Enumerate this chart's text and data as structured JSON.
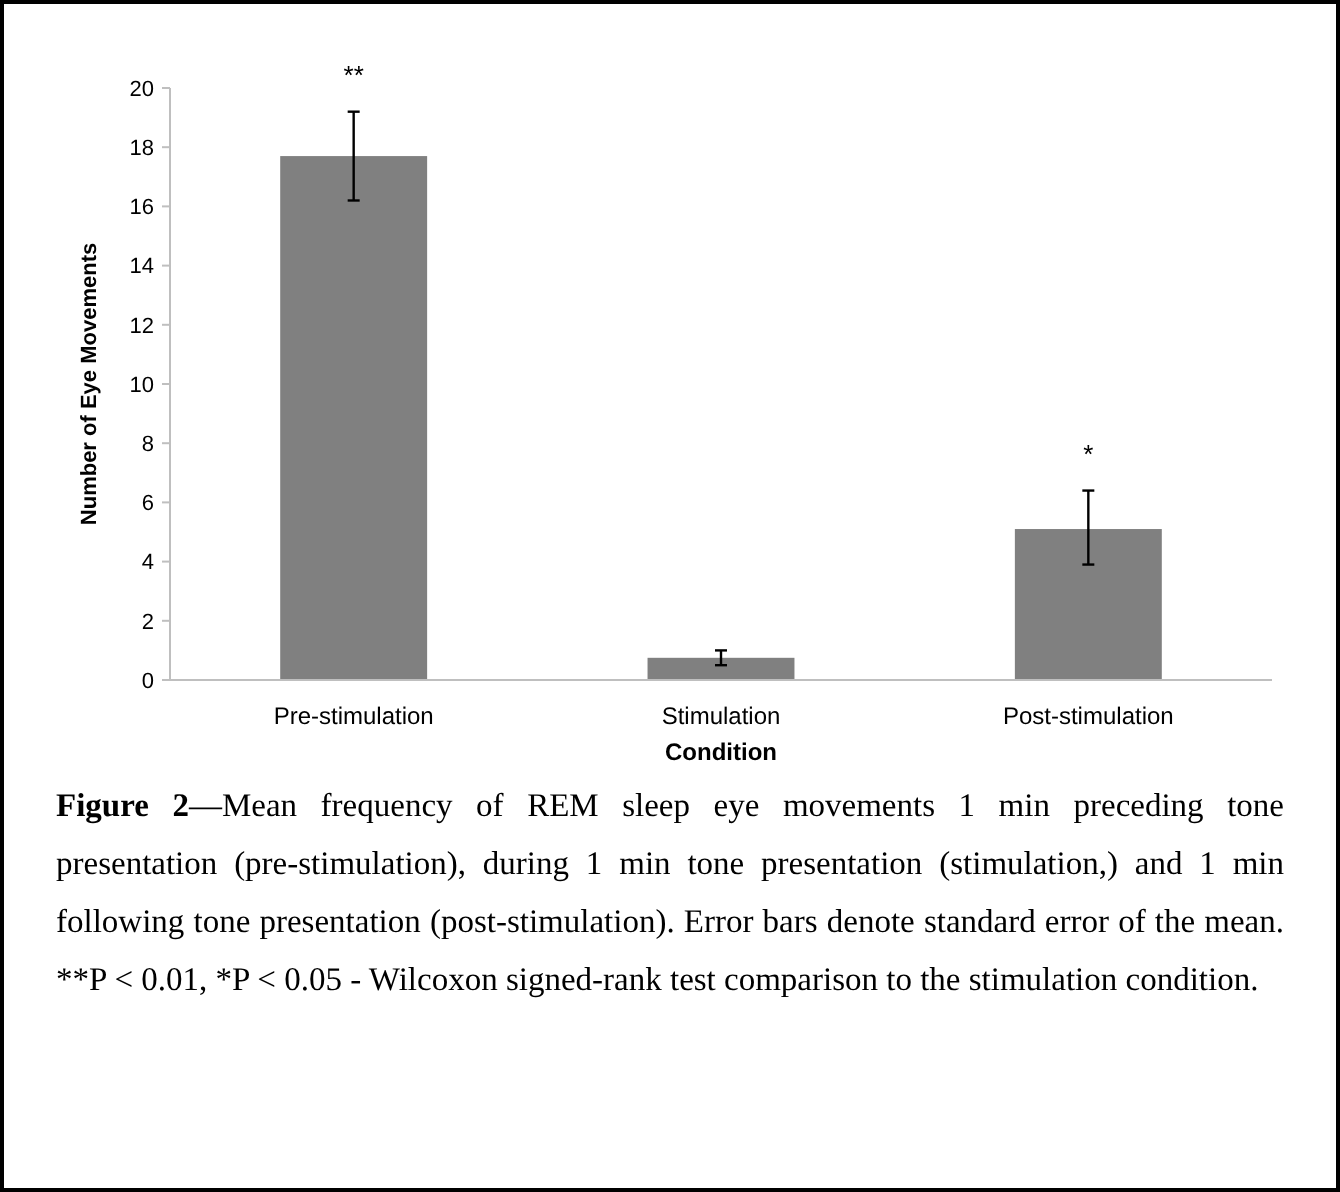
{
  "chart_data": {
    "type": "bar",
    "title": "Figure 2",
    "xlabel": "Condition",
    "ylabel": "Number of Eye Movements",
    "categories": [
      "Pre-stimulation",
      "Stimulation",
      "Post-stimulation"
    ],
    "values": [
      17.7,
      0.75,
      5.1
    ],
    "color": "#808080",
    "errors": [
      [
        16.2,
        19.2
      ],
      [
        0.5,
        1.0
      ],
      [
        3.9,
        6.4
      ]
    ],
    "ylim": [
      0,
      20
    ],
    "yticks": [
      0,
      2,
      4,
      6,
      8,
      10,
      12,
      14,
      16,
      18,
      20
    ],
    "grid": false,
    "annotations": [
      {
        "text": "**",
        "x": "Pre-stimulation",
        "y": 19.2
      },
      {
        "text": "*",
        "x": "Post-stimulation",
        "y": 6.4
      },
      "—Mean frequency of REM sleep eye movements 1 min preceding tone presentation (pre-stimulation), during 1 min tone presentation (stimulation,) and 1 min following tone presentation (post-stimulation). Error bars denote standard error of the mean. **P < 0.01, *P < 0.05 - Wilcoxon signed-rank test comparison to the stimulation condition."
    ]
  }
}
